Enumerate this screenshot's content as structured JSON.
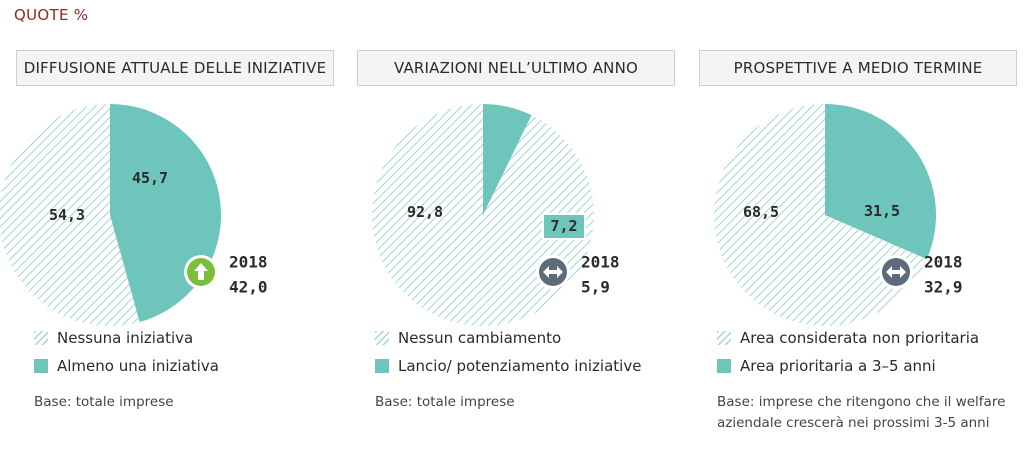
{
  "top_label": "QUOTE %",
  "colors": {
    "solid": "#6ec5bb",
    "hatch": "#9fd6cf",
    "green_icon": "#7bbe3a",
    "gray_icon": "#5e6b7a"
  },
  "chart_data": [
    {
      "type": "pie",
      "title": "DIFFUSIONE ATTUALE DELLE INIZIATIVE",
      "slices": [
        {
          "label": "Nessuna iniziativa",
          "value": 54.3,
          "display": "54,3",
          "style": "hatched"
        },
        {
          "label": "Almeno una iniziativa",
          "value": 45.7,
          "display": "45,7",
          "style": "solid"
        }
      ],
      "comparison": {
        "year": "2018",
        "value": "42,0",
        "icon": "up-arrow-icon"
      },
      "base_note": [
        "Base: totale imprese"
      ]
    },
    {
      "type": "pie",
      "title": "VARIAZIONI NELL’ULTIMO ANNO",
      "slices": [
        {
          "label": "Nessun cambiamento",
          "value": 92.8,
          "display": "92,8",
          "style": "hatched"
        },
        {
          "label": "Lancio/ potenziamento iniziative",
          "value": 7.2,
          "display": "7,2",
          "style": "solid"
        }
      ],
      "comparison": {
        "year": "2018",
        "value": "5,9",
        "icon": "left-right-arrow-icon"
      },
      "base_note": [
        "Base: totale imprese"
      ]
    },
    {
      "type": "pie",
      "title": "PROSPETTIVE A MEDIO TERMINE",
      "slices": [
        {
          "label": "Area considerata non prioritaria",
          "value": 68.5,
          "display": "68,5",
          "style": "hatched"
        },
        {
          "label": "Area prioritaria a 3–5 anni",
          "value": 31.5,
          "display": "31,5",
          "style": "solid"
        }
      ],
      "comparison": {
        "year": "2018",
        "value": "32,9",
        "icon": "left-right-arrow-icon"
      },
      "base_note": [
        "Base: imprese che ritengono che il welfare",
        "aziendale crescerà nei prossimi 3-5 anni"
      ]
    }
  ]
}
